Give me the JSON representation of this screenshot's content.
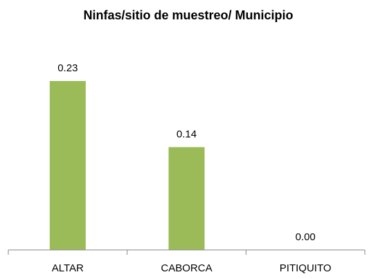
{
  "chart_data": {
    "type": "bar",
    "title": "Ninfas/sitio de muestreo/ Municipio",
    "categories": [
      "ALTAR",
      "CABORCA",
      "PITIQUITO"
    ],
    "values": [
      0.23,
      0.14,
      0.0
    ],
    "value_labels": [
      "0.23",
      "0.14",
      "0.00"
    ],
    "color": "#9bbb59"
  }
}
